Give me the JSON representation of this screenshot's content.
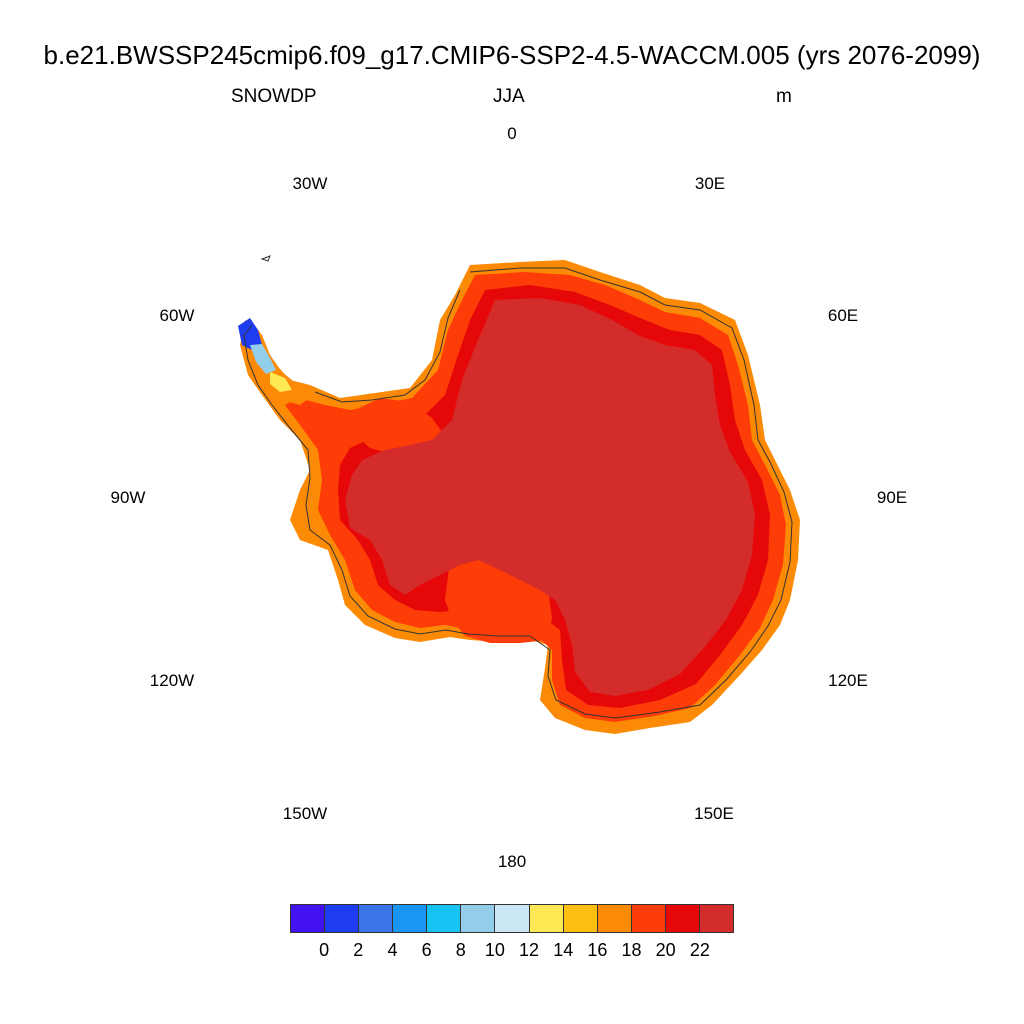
{
  "title": "b.e21.BWSSP245cmip6.f09_g17.CMIP6-SSP2-4.5-WACCM.005 (yrs 2076-2099)",
  "variable": "SNOWDP",
  "season": "JJA",
  "units": "m",
  "longitude_labels": [
    {
      "name": "lon-0",
      "text": "0"
    },
    {
      "name": "lon-30e",
      "text": "30E"
    },
    {
      "name": "lon-60e",
      "text": "60E"
    },
    {
      "name": "lon-90e",
      "text": "90E"
    },
    {
      "name": "lon-120e",
      "text": "120E"
    },
    {
      "name": "lon-150e",
      "text": "150E"
    },
    {
      "name": "lon-180",
      "text": "180"
    },
    {
      "name": "lon-150w",
      "text": "150W"
    },
    {
      "name": "lon-120w",
      "text": "120W"
    },
    {
      "name": "lon-90w",
      "text": "90W"
    },
    {
      "name": "lon-60w",
      "text": "60W"
    },
    {
      "name": "lon-30w",
      "text": "30W"
    }
  ],
  "colorbar": {
    "colors": [
      "#4212f0",
      "#1f3df0",
      "#3a75ea",
      "#1a96f2",
      "#17c2f5",
      "#92cdea",
      "#cbe6f4",
      "#fde954",
      "#fcbf12",
      "#fd8a05",
      "#fd3c07",
      "#e60808",
      "#d42b2b"
    ],
    "tick_labels": [
      "0",
      "2",
      "4",
      "6",
      "8",
      "10",
      "12",
      "14",
      "16",
      "18",
      "20",
      "22"
    ]
  },
  "map_fill": {
    "interior": "#d42b2b",
    "inner_ring": "#e60808",
    "edge": "#fd3c07",
    "margin": "#fd8a05",
    "coast_light": "#fcbf12",
    "coastline": "#333333"
  }
}
